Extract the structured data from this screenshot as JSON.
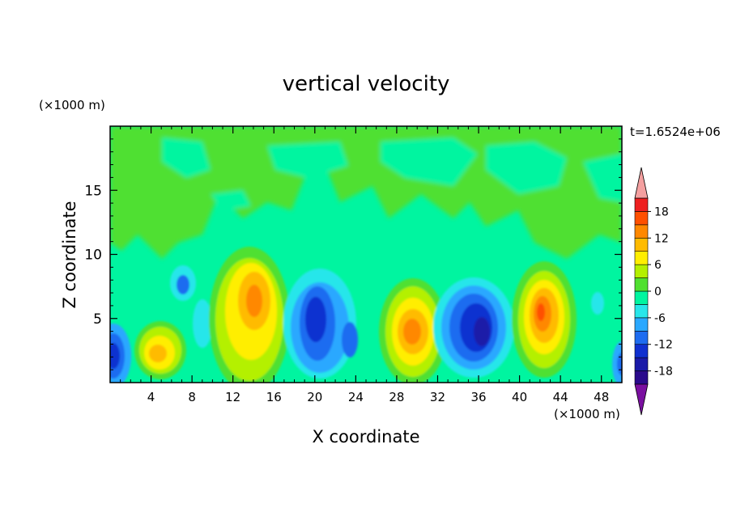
{
  "chart_data": {
    "type": "heatmap",
    "title": "vertical velocity",
    "xlabel": "X coordinate",
    "ylabel": "Z coordinate",
    "x_unit": "(×1000 m)",
    "y_unit": "(×1000 m)",
    "time_label": "t=1.6524e+06",
    "xlim": [
      0,
      50
    ],
    "ylim": [
      0,
      20
    ],
    "x_ticks": [
      4,
      8,
      12,
      16,
      20,
      24,
      28,
      32,
      36,
      40,
      44,
      48
    ],
    "y_ticks": [
      5,
      10,
      15
    ],
    "colorbar": {
      "levels": [
        -21,
        -18,
        -15,
        -12,
        -9,
        -6,
        -3,
        0,
        3,
        6,
        9,
        12,
        15,
        18,
        21
      ],
      "tick_labels": [
        18,
        12,
        6,
        0,
        -6,
        -12,
        -18
      ],
      "colors": [
        "#7a0fa0",
        "#2a0a8c",
        "#1a1aa8",
        "#1030d0",
        "#1e6cf0",
        "#2aa8ff",
        "#28e6ea",
        "#00f5a0",
        "#50e030",
        "#b4f000",
        "#ffee00",
        "#ffbb00",
        "#ff8800",
        "#ff5000",
        "#ee2020",
        "#f4a0a0"
      ],
      "extend": "both"
    },
    "grid": false,
    "cells": [
      {
        "x": 1.0,
        "z": 2.5,
        "value": -12
      },
      {
        "x": 5.0,
        "z": 2.3,
        "value": 9
      },
      {
        "x": 8.0,
        "z": 7.5,
        "value": -9
      },
      {
        "x": 14.0,
        "z": 6.0,
        "value": 12
      },
      {
        "x": 20.5,
        "z": 5.0,
        "value": -12
      },
      {
        "x": 29.5,
        "z": 4.0,
        "value": 12
      },
      {
        "x": 36.0,
        "z": 4.5,
        "value": -15
      },
      {
        "x": 42.5,
        "z": 5.0,
        "value": 15
      },
      {
        "x": 49.5,
        "z": 2.0,
        "value": -9
      }
    ]
  }
}
